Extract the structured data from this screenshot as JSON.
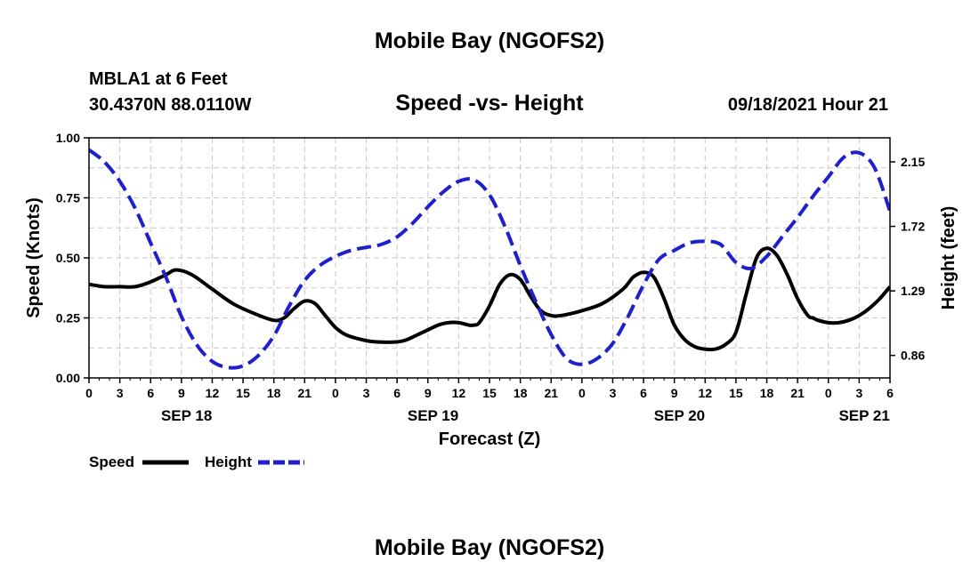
{
  "page": {
    "title_top": "Mobile Bay (NGOFS2)",
    "title_bottom": "Mobile Bay (NGOFS2)",
    "station": "MBLA1 at 6 Feet",
    "coords": "30.4370N  88.0110W",
    "subtitle": "Speed -vs- Height",
    "datetime": "09/18/2021 Hour 21"
  },
  "chart_data": {
    "type": "line",
    "title": "Speed -vs- Height",
    "xlabel": "Forecast (Z)",
    "ylabel_left": "Speed (Knots)",
    "ylabel_right": "Height (feet)",
    "grid": true,
    "legend_position": "bottom-left",
    "x_range": [
      0,
      78
    ],
    "x_units": "hours since SEP 18 00Z",
    "x_tick_labels": [
      "0",
      "3",
      "6",
      "9",
      "12",
      "15",
      "18",
      "21",
      "0",
      "3",
      "6",
      "9",
      "12",
      "15",
      "18",
      "21",
      "0",
      "3",
      "6",
      "9",
      "12",
      "15",
      "18",
      "21",
      "0",
      "3",
      "6"
    ],
    "day_labels": [
      {
        "label": "SEP 18",
        "hour": 9.5
      },
      {
        "label": "SEP 19",
        "hour": 33.5
      },
      {
        "label": "SEP 20",
        "hour": 57.5
      },
      {
        "label": "SEP 21",
        "hour": 75.5
      }
    ],
    "y_left": {
      "min": 0,
      "max": 1.0,
      "ticks": [
        0.0,
        0.25,
        0.5,
        0.75,
        1.0
      ],
      "tick_labels": [
        "0.00",
        "0.25",
        "0.50",
        "0.75",
        "1.00"
      ]
    },
    "y_right": {
      "min": 0.71,
      "max": 2.31,
      "ticks": [
        0.86,
        1.29,
        1.72,
        2.15
      ],
      "tick_labels": [
        "0.86",
        "1.29",
        "1.72",
        "2.15"
      ]
    },
    "series": [
      {
        "name": "Speed",
        "axis": "left",
        "color": "#000000",
        "style": "solid",
        "x": [
          0,
          1.5,
          3,
          4.5,
          6,
          7.5,
          8.5,
          10,
          12,
          14,
          16,
          18,
          19,
          20,
          21,
          22,
          23,
          24,
          25,
          26.5,
          28,
          30,
          31,
          32,
          33,
          34,
          35,
          36,
          37,
          37.5,
          38,
          39,
          40,
          41,
          42,
          43,
          44,
          45,
          46,
          48,
          50,
          52,
          53,
          54,
          55,
          56,
          57,
          58,
          59,
          60,
          61,
          62,
          63,
          64,
          65,
          66,
          67,
          68,
          69,
          70,
          70.5,
          71,
          72,
          73,
          74,
          75,
          76,
          77,
          78
        ],
        "y": [
          0.39,
          0.38,
          0.38,
          0.38,
          0.4,
          0.43,
          0.45,
          0.43,
          0.37,
          0.31,
          0.27,
          0.24,
          0.25,
          0.29,
          0.32,
          0.31,
          0.26,
          0.21,
          0.18,
          0.16,
          0.15,
          0.15,
          0.16,
          0.18,
          0.2,
          0.22,
          0.23,
          0.23,
          0.22,
          0.22,
          0.23,
          0.3,
          0.39,
          0.43,
          0.41,
          0.34,
          0.28,
          0.26,
          0.26,
          0.28,
          0.31,
          0.37,
          0.42,
          0.44,
          0.42,
          0.33,
          0.22,
          0.16,
          0.13,
          0.12,
          0.12,
          0.14,
          0.19,
          0.35,
          0.5,
          0.54,
          0.51,
          0.43,
          0.33,
          0.26,
          0.25,
          0.24,
          0.23,
          0.23,
          0.24,
          0.26,
          0.29,
          0.33,
          0.38
        ]
      },
      {
        "name": "Height",
        "axis": "right",
        "color": "#1f1fcc",
        "style": "dashed",
        "x": [
          0,
          1.5,
          3,
          4.5,
          6,
          7.5,
          9,
          10.5,
          12,
          13.5,
          15,
          16.5,
          18,
          19.5,
          21,
          22.5,
          24,
          25.5,
          27,
          28.5,
          30,
          31.5,
          33,
          34.5,
          36,
          37.5,
          39,
          40.5,
          42,
          43.5,
          45,
          46.5,
          48,
          49.5,
          51,
          52.5,
          54,
          55.5,
          57,
          58.5,
          60,
          61.5,
          63,
          64.5,
          66,
          67.5,
          69,
          70.5,
          72,
          73.5,
          75,
          76.5,
          78
        ],
        "y": [
          2.23,
          2.15,
          2.02,
          1.84,
          1.61,
          1.38,
          1.12,
          0.93,
          0.82,
          0.78,
          0.79,
          0.86,
          0.99,
          1.19,
          1.36,
          1.46,
          1.52,
          1.56,
          1.58,
          1.6,
          1.65,
          1.74,
          1.85,
          1.95,
          2.02,
          2.03,
          1.93,
          1.72,
          1.46,
          1.22,
          1.0,
          0.84,
          0.8,
          0.84,
          0.94,
          1.12,
          1.33,
          1.5,
          1.56,
          1.61,
          1.62,
          1.6,
          1.48,
          1.44,
          1.52,
          1.65,
          1.78,
          1.92,
          2.05,
          2.18,
          2.21,
          2.11,
          1.82
        ]
      }
    ],
    "legend": [
      {
        "label": "Speed",
        "color": "#000000",
        "style": "solid"
      },
      {
        "label": "Height",
        "color": "#1f1fcc",
        "style": "dashed"
      }
    ]
  }
}
